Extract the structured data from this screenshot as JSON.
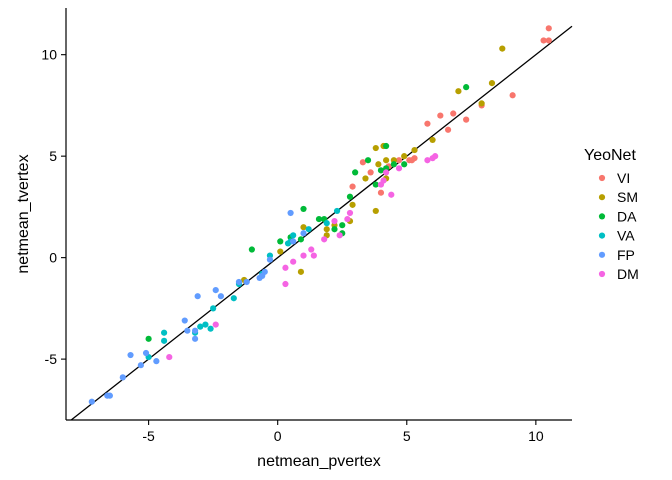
{
  "chart_data": {
    "type": "scatter",
    "xlabel": "netmean_pvertex",
    "ylabel": "netmean_tvertex",
    "xlim": [
      -8.2,
      11.4
    ],
    "ylim": [
      -8.0,
      12.3
    ],
    "xticks": [
      -5,
      0,
      5,
      10
    ],
    "yticks": [
      -5,
      0,
      5,
      10
    ],
    "grid": false,
    "legend": {
      "title": "YeoNet",
      "position": "right"
    },
    "reference_line": {
      "slope": 1,
      "intercept": 0,
      "color": "#000000"
    },
    "series": [
      {
        "name": "VI",
        "color": "#F8766D",
        "points": [
          [
            10.5,
            11.3
          ],
          [
            10.5,
            10.7
          ],
          [
            10.3,
            10.7
          ],
          [
            9.1,
            8.0
          ],
          [
            7.9,
            7.5
          ],
          [
            7.3,
            6.8
          ],
          [
            6.8,
            7.1
          ],
          [
            6.6,
            6.3
          ],
          [
            6.3,
            7.0
          ],
          [
            5.8,
            6.6
          ],
          [
            5.3,
            4.9
          ],
          [
            5.1,
            4.8
          ],
          [
            5.2,
            4.8
          ],
          [
            4.7,
            4.8
          ],
          [
            4.3,
            4.5
          ],
          [
            3.3,
            4.7
          ],
          [
            3.6,
            4.2
          ],
          [
            4.0,
            3.2
          ],
          [
            2.9,
            3.5
          ]
        ]
      },
      {
        "name": "SM",
        "color": "#B79F00",
        "points": [
          [
            8.7,
            10.3
          ],
          [
            8.3,
            8.6
          ],
          [
            7.9,
            7.6
          ],
          [
            7.0,
            8.2
          ],
          [
            6.0,
            5.8
          ],
          [
            5.3,
            5.3
          ],
          [
            4.9,
            5.0
          ],
          [
            4.5,
            4.8
          ],
          [
            4.2,
            4.8
          ],
          [
            4.1,
            5.5
          ],
          [
            3.8,
            5.4
          ],
          [
            4.2,
            3.9
          ],
          [
            3.9,
            4.6
          ],
          [
            3.8,
            2.3
          ],
          [
            3.4,
            3.9
          ],
          [
            2.9,
            2.6
          ],
          [
            2.8,
            1.8
          ],
          [
            2.2,
            1.6
          ],
          [
            1.9,
            1.4
          ],
          [
            1.9,
            1.1
          ],
          [
            1.0,
            1.5
          ],
          [
            0.9,
            -0.7
          ],
          [
            0.1,
            0.3
          ],
          [
            -1.3,
            -1.1
          ]
        ]
      },
      {
        "name": "DA",
        "color": "#00BA38",
        "points": [
          [
            7.3,
            8.4
          ],
          [
            4.9,
            4.6
          ],
          [
            4.5,
            4.6
          ],
          [
            4.2,
            5.5
          ],
          [
            4.2,
            4.4
          ],
          [
            4.0,
            4.3
          ],
          [
            3.8,
            3.6
          ],
          [
            3.5,
            4.8
          ],
          [
            3.0,
            4.2
          ],
          [
            2.8,
            3.0
          ],
          [
            2.5,
            1.6
          ],
          [
            2.5,
            1.2
          ],
          [
            2.2,
            1.4
          ],
          [
            1.8,
            1.9
          ],
          [
            1.6,
            1.9
          ],
          [
            1.0,
            2.4
          ],
          [
            0.9,
            0.9
          ],
          [
            0.5,
            1.0
          ],
          [
            0.1,
            0.8
          ],
          [
            -1.0,
            0.4
          ],
          [
            -5.0,
            -4.0
          ]
        ]
      },
      {
        "name": "VA",
        "color": "#00BFC4",
        "points": [
          [
            2.3,
            2.3
          ],
          [
            1.9,
            1.7
          ],
          [
            1.2,
            1.4
          ],
          [
            0.6,
            1.1
          ],
          [
            0.5,
            0.8
          ],
          [
            0.4,
            0.7
          ],
          [
            -0.3,
            0.1
          ],
          [
            -0.6,
            -0.8
          ],
          [
            -1.5,
            -1.3
          ],
          [
            -1.7,
            -2.0
          ],
          [
            -2.5,
            -2.5
          ],
          [
            -2.6,
            -3.5
          ],
          [
            -2.8,
            -3.3
          ],
          [
            -3.0,
            -3.4
          ],
          [
            -3.2,
            -3.7
          ],
          [
            -4.4,
            -3.7
          ],
          [
            -4.4,
            -4.1
          ],
          [
            -5.0,
            -4.9
          ]
        ]
      },
      {
        "name": "FP",
        "color": "#619CFF",
        "points": [
          [
            1.0,
            1.2
          ],
          [
            0.6,
            0.8
          ],
          [
            0.5,
            2.2
          ],
          [
            -0.3,
            -0.1
          ],
          [
            -0.5,
            -0.7
          ],
          [
            -0.6,
            -0.9
          ],
          [
            -0.7,
            -1.0
          ],
          [
            -1.2,
            -1.2
          ],
          [
            -1.5,
            -1.2
          ],
          [
            -2.2,
            -1.9
          ],
          [
            -2.4,
            -1.6
          ],
          [
            -3.1,
            -1.9
          ],
          [
            -3.2,
            -3.6
          ],
          [
            -3.2,
            -4.0
          ],
          [
            -3.5,
            -3.6
          ],
          [
            -3.6,
            -3.1
          ],
          [
            -4.7,
            -5.1
          ],
          [
            -5.1,
            -4.7
          ],
          [
            -5.3,
            -5.3
          ],
          [
            -5.7,
            -4.8
          ],
          [
            -6.0,
            -5.9
          ],
          [
            -6.5,
            -6.8
          ],
          [
            -6.6,
            -6.8
          ],
          [
            -7.2,
            -7.1
          ]
        ]
      },
      {
        "name": "DM",
        "color": "#F564E3",
        "points": [
          [
            6.1,
            5.0
          ],
          [
            6.0,
            4.9
          ],
          [
            5.8,
            4.8
          ],
          [
            4.7,
            4.4
          ],
          [
            4.2,
            4.2
          ],
          [
            4.1,
            3.8
          ],
          [
            4.4,
            3.1
          ],
          [
            4.0,
            3.6
          ],
          [
            2.8,
            2.2
          ],
          [
            2.7,
            1.9
          ],
          [
            2.2,
            1.8
          ],
          [
            2.4,
            1.1
          ],
          [
            1.8,
            0.9
          ],
          [
            1.3,
            0.4
          ],
          [
            1.4,
            0.1
          ],
          [
            1.0,
            0.1
          ],
          [
            0.6,
            -0.2
          ],
          [
            0.3,
            -0.5
          ],
          [
            0.3,
            -1.3
          ],
          [
            -2.4,
            -3.3
          ],
          [
            -4.2,
            -4.9
          ]
        ]
      }
    ]
  }
}
